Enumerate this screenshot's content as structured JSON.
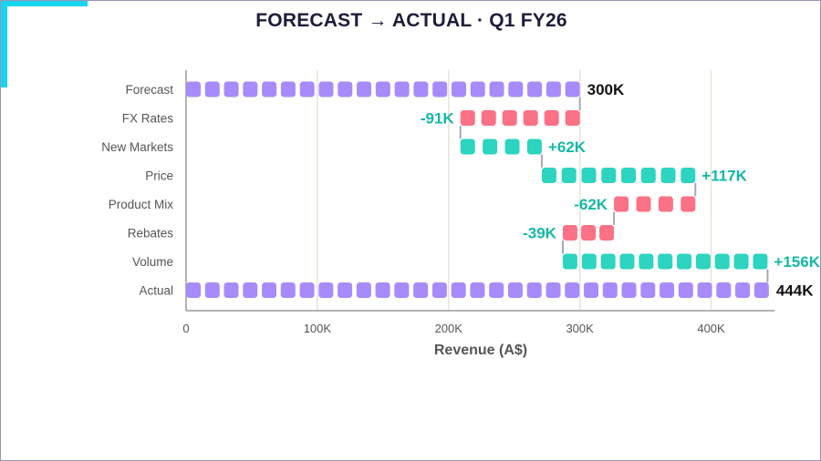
{
  "chart_data": {
    "type": "bar",
    "subtype": "waterfall",
    "title": "FORECAST → ACTUAL · Q1 FY26",
    "xlabel": "Revenue (A$)",
    "ylabel": "",
    "xlim": [
      0,
      450000
    ],
    "ticks": [
      {
        "value": 0,
        "label": "0"
      },
      {
        "value": 100000,
        "label": "100K"
      },
      {
        "value": 200000,
        "label": "200K"
      },
      {
        "value": 300000,
        "label": "300K"
      },
      {
        "value": 400000,
        "label": "400K"
      }
    ],
    "grid": true,
    "colors": {
      "total": "#a78bfa",
      "increase": "#2dd4bf",
      "decrease": "#fb7185",
      "delta_label": "#14b8a6",
      "total_label": "#111111",
      "connector": "#a8a8b8"
    },
    "steps": [
      {
        "category": "Forecast",
        "kind": "total",
        "value": 300000,
        "label": "300K"
      },
      {
        "category": "FX Rates",
        "kind": "decrease",
        "value": -91000,
        "label": "-91K"
      },
      {
        "category": "New Markets",
        "kind": "increase",
        "value": 62000,
        "label": "+62K"
      },
      {
        "category": "Price",
        "kind": "increase",
        "value": 117000,
        "label": "+117K"
      },
      {
        "category": "Product Mix",
        "kind": "decrease",
        "value": -62000,
        "label": "-62K"
      },
      {
        "category": "Rebates",
        "kind": "decrease",
        "value": -39000,
        "label": "-39K"
      },
      {
        "category": "Volume",
        "kind": "increase",
        "value": 156000,
        "label": "+156K"
      },
      {
        "category": "Actual",
        "kind": "total",
        "value": 444000,
        "label": "444K"
      }
    ]
  }
}
